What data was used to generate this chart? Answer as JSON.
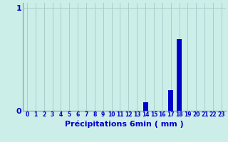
{
  "hours": [
    0,
    1,
    2,
    3,
    4,
    5,
    6,
    7,
    8,
    9,
    10,
    11,
    12,
    13,
    14,
    15,
    16,
    17,
    18,
    19,
    20,
    21,
    22,
    23
  ],
  "values": [
    0,
    0,
    0,
    0,
    0,
    0,
    0,
    0,
    0,
    0,
    0,
    0,
    0,
    0,
    0.08,
    0,
    0,
    0.2,
    0.7,
    0,
    0,
    0,
    0,
    0
  ],
  "bar_color": "#0000cc",
  "background_color": "#cceee8",
  "grid_color": "#aacccc",
  "axis_color": "#7799aa",
  "text_color": "#0000cc",
  "xlabel": "Précipitations 6min ( mm )",
  "ylim": [
    0,
    1.05
  ],
  "yticks": [
    0,
    1
  ],
  "xlim": [
    -0.5,
    23.5
  ],
  "xlabel_fontsize": 8,
  "ytick_fontsize": 8,
  "xtick_fontsize": 5.5
}
